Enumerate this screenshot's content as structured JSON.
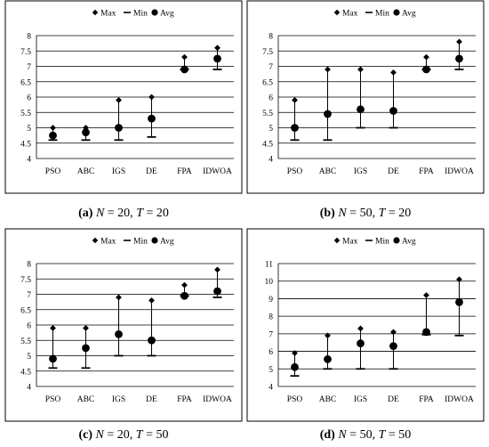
{
  "colors": {
    "frame": "#000000",
    "grid": "#000000",
    "mark": "#000000",
    "background": "#ffffff"
  },
  "legend": {
    "max": "Max",
    "min": "Min",
    "avg": "Avg"
  },
  "chart_data": [
    {
      "type": "scatter",
      "panel_id": "a",
      "caption": {
        "label": "(a)",
        "n_var": "N",
        "n_value": "= 20,",
        "t_var": "T",
        "t_value": "= 20"
      },
      "categories": [
        "PSO",
        "ABC",
        "IGS",
        "DE",
        "FPA",
        "IDWOA"
      ],
      "ylim": [
        4,
        8
      ],
      "yticks": [
        "4",
        "4.5",
        "5",
        "5.5",
        "6",
        "6.5",
        "7",
        "7.5",
        "8"
      ],
      "grid": true,
      "legend_position": "top-right",
      "series": [
        {
          "name": "Max",
          "values": [
            5.0,
            5.0,
            5.9,
            6.0,
            7.3,
            7.6
          ]
        },
        {
          "name": "Min",
          "values": [
            4.6,
            4.6,
            4.6,
            4.7,
            6.9,
            6.9
          ]
        },
        {
          "name": "Avg",
          "values": [
            4.75,
            4.85,
            5.0,
            5.3,
            6.9,
            7.25
          ]
        }
      ]
    },
    {
      "type": "scatter",
      "panel_id": "b",
      "caption": {
        "label": "(b)",
        "n_var": "N",
        "n_value": "= 50,",
        "t_var": "T",
        "t_value": "= 20"
      },
      "categories": [
        "PSO",
        "ABC",
        "IGS",
        "DE",
        "FPA",
        "IDWOA"
      ],
      "ylim": [
        4,
        8
      ],
      "yticks": [
        "4",
        "4.5",
        "5",
        "5.5",
        "6",
        "6.5",
        "7",
        "7.5",
        "8"
      ],
      "grid": true,
      "legend_position": "top-right",
      "series": [
        {
          "name": "Max",
          "values": [
            5.9,
            6.9,
            6.9,
            6.8,
            7.3,
            7.8
          ]
        },
        {
          "name": "Min",
          "values": [
            4.6,
            4.6,
            5.0,
            5.0,
            6.9,
            6.9
          ]
        },
        {
          "name": "Avg",
          "values": [
            5.0,
            5.45,
            5.6,
            5.55,
            6.9,
            7.25
          ]
        }
      ]
    },
    {
      "type": "scatter",
      "panel_id": "c",
      "caption": {
        "label": "(c)",
        "n_var": "N",
        "n_value": "= 20,",
        "t_var": "T",
        "t_value": "= 50"
      },
      "categories": [
        "PSO",
        "ABC",
        "IGS",
        "DE",
        "FPA",
        "IDWOA"
      ],
      "ylim": [
        4,
        8
      ],
      "yticks": [
        "4",
        "4.5",
        "5",
        "5.5",
        "6",
        "6.5",
        "7",
        "7.5",
        "8"
      ],
      "grid": true,
      "legend_position": "top-right",
      "series": [
        {
          "name": "Max",
          "values": [
            5.9,
            5.9,
            6.9,
            6.8,
            7.3,
            7.8
          ]
        },
        {
          "name": "Min",
          "values": [
            4.6,
            4.6,
            5.0,
            5.0,
            6.95,
            6.9
          ]
        },
        {
          "name": "Avg",
          "values": [
            4.9,
            5.25,
            5.7,
            5.5,
            6.95,
            7.1
          ]
        }
      ]
    },
    {
      "type": "scatter",
      "panel_id": "d",
      "caption": {
        "label": "(d)",
        "n_var": "N",
        "n_value": "= 50,",
        "t_var": "T",
        "t_value": "= 50"
      },
      "categories": [
        "PSO",
        "ABC",
        "IGS",
        "DE",
        "FPA",
        "IDWOA"
      ],
      "ylim": [
        4,
        11
      ],
      "yticks": [
        "4",
        "5",
        "6",
        "7",
        "8",
        "9",
        "10",
        "11"
      ],
      "grid": true,
      "legend_position": "top-right",
      "series": [
        {
          "name": "Max",
          "values": [
            5.9,
            6.9,
            7.3,
            7.1,
            9.2,
            10.1
          ]
        },
        {
          "name": "Min",
          "values": [
            4.6,
            5.0,
            5.0,
            5.0,
            6.95,
            6.9
          ]
        },
        {
          "name": "Avg",
          "values": [
            5.1,
            5.55,
            6.45,
            6.3,
            7.1,
            8.8
          ]
        }
      ]
    }
  ]
}
